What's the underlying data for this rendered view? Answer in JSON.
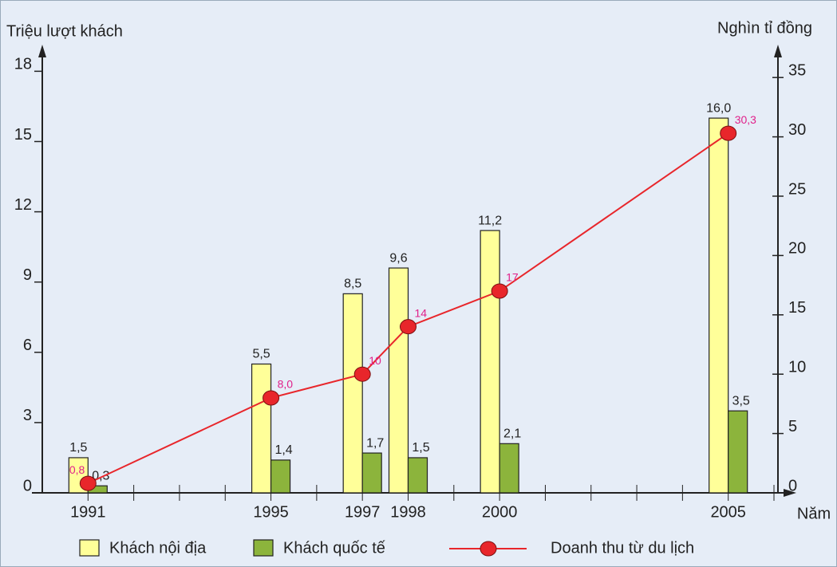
{
  "chart_data": {
    "type": "bar-line",
    "y_axis_label": "Triệu lượt khách",
    "y2_axis_label": "Nghìn tỉ đồng",
    "x_axis_label": "Năm",
    "x": [
      1991,
      1995,
      1997,
      1998,
      2000,
      2005
    ],
    "xlim": [
      1990,
      2006
    ],
    "xticks": [
      1991,
      1995,
      1997,
      1998,
      2000,
      2005
    ],
    "xminor_ticks": [
      1992,
      1993,
      1994,
      1996,
      1999,
      2001,
      2002,
      2003,
      2004,
      2006
    ],
    "ylim": [
      0,
      19
    ],
    "yticks": [
      0,
      3,
      6,
      9,
      12,
      15,
      18
    ],
    "y2lim": [
      0,
      37.5
    ],
    "y2ticks": [
      0,
      5,
      10,
      15,
      20,
      25,
      30,
      35
    ],
    "series": [
      {
        "name": "Khách nội địa",
        "type": "bar",
        "color": "#ffff99",
        "values": [
          1.5,
          5.5,
          8.5,
          9.6,
          11.2,
          16.0
        ],
        "value_labels": [
          "1,5",
          "5,5",
          "8,5",
          "9,6",
          "11,2",
          "16,0"
        ]
      },
      {
        "name": "Khách quốc tế",
        "type": "bar",
        "color": "#8cb43c",
        "values": [
          0.3,
          1.4,
          1.7,
          1.5,
          2.1,
          3.5
        ],
        "value_labels": [
          "0,3",
          "1,4",
          "1,7",
          "1,5",
          "2,1",
          "3,5"
        ]
      },
      {
        "name": "Doanh thu từ du lịch",
        "type": "line",
        "axis": "y2",
        "color": "#e8262b",
        "values": [
          0.8,
          8.0,
          10,
          14,
          17,
          30.3
        ],
        "value_labels": [
          "0,8",
          "8,0",
          "10",
          "14",
          "17",
          "30,3"
        ]
      }
    ]
  }
}
